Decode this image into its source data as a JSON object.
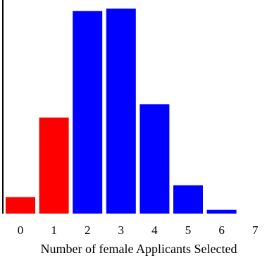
{
  "chart_data": {
    "type": "bar",
    "categories": [
      "0",
      "1",
      "2",
      "3",
      "4",
      "5",
      "6",
      "7"
    ],
    "values": [
      0.035,
      0.204,
      0.43,
      0.435,
      0.232,
      0.06,
      0.008,
      0
    ],
    "bar_colors": [
      "#ff0000",
      "#ff0000",
      "#0000ff",
      "#0000ff",
      "#0000ff",
      "#0000ff",
      "#0000ff",
      "#0000ff"
    ],
    "title": "",
    "xlabel": "Number of female Applicants Selected",
    "ylabel": "",
    "ylim": [
      0,
      0.44
    ],
    "grid": false,
    "legend": false,
    "axis_color": "#000000"
  }
}
